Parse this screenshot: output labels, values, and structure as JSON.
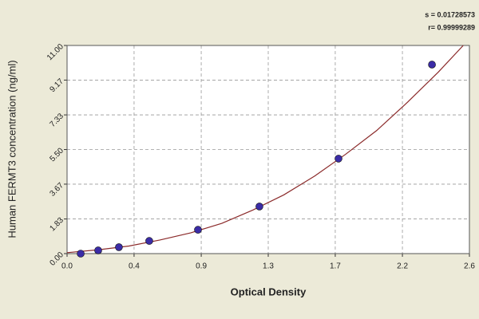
{
  "chart_data": {
    "type": "scatter",
    "x_label": "Optical Density",
    "y_label": "Human FERMT3 concentration (ng/ml)",
    "annotations": [
      "s = 0.01728573",
      "r= 0.99999289"
    ],
    "points": {
      "color": "#3b2ca6",
      "x": [
        0.088,
        0.201,
        0.335,
        0.531,
        0.846,
        1.243,
        1.754,
        2.358
      ],
      "values": [
        0,
        0.17,
        0.34,
        0.67,
        1.26,
        2.49,
        5.02,
        9.99
      ]
    },
    "fit": {
      "color": "#8b2a2a",
      "x": [
        0,
        0.2,
        0.4,
        0.6,
        0.8,
        1.0,
        1.2,
        1.4,
        1.6,
        1.8,
        2.0,
        2.2,
        2.4,
        2.56
      ],
      "values": [
        0.05,
        0.2,
        0.4,
        0.72,
        1.1,
        1.6,
        2.3,
        3.1,
        4.1,
        5.25,
        6.5,
        8.0,
        9.6,
        11
      ]
    },
    "xlim": [
      0,
      2.6
    ],
    "xticks": [
      {
        "value": 0,
        "label": "0.0"
      },
      {
        "value": 0.433,
        "label": "0.4"
      },
      {
        "value": 0.867,
        "label": "0.9"
      },
      1.3,
      {
        "value": 1.733,
        "label": "1.7"
      },
      {
        "value": 2.167,
        "label": "2.2"
      },
      2.6
    ],
    "ylim": [
      0,
      11
    ],
    "yticks": [
      {
        "value": 0,
        "label": "0.00"
      },
      1.83,
      3.67,
      {
        "value": 5.5,
        "label": "5.50"
      },
      7.33,
      9.17,
      {
        "value": 11,
        "label": "11.00"
      }
    ],
    "grid": true
  }
}
